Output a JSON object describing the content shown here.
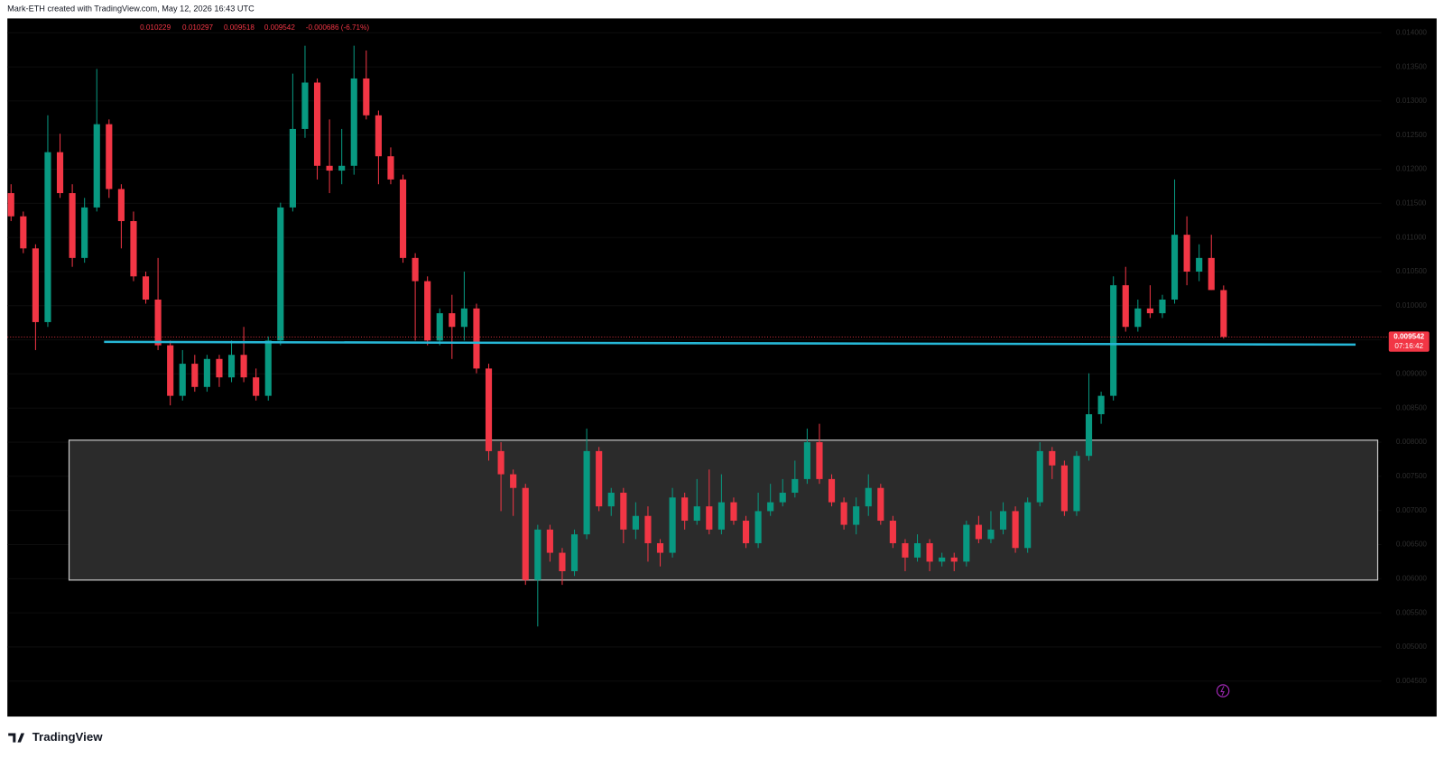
{
  "header": "Mark-ETH created with TradingView.com, May 12, 2026 16:43 UTC",
  "footer_logo": "TradingView",
  "chart_data": {
    "type": "candlestick",
    "up_color": "#089981",
    "down_color": "#f23645",
    "change_label": "-0.000686 (-6.71%)",
    "countdown": "07:16:42",
    "ylim": [
      0.00398,
      0.01421
    ],
    "yticks": [
      {
        "value": 0.0045,
        "label": "0.004500"
      },
      {
        "value": 0.005,
        "label": "0.005000"
      },
      {
        "value": 0.0055,
        "label": "0.005500"
      },
      {
        "value": 0.006,
        "label": "0.006000"
      },
      {
        "value": 0.0065,
        "label": "0.006500"
      },
      {
        "value": 0.007,
        "label": "0.007000"
      },
      {
        "value": 0.0075,
        "label": "0.007500"
      },
      {
        "value": 0.008,
        "label": "0.008000"
      },
      {
        "value": 0.0085,
        "label": "0.008500"
      },
      {
        "value": 0.009,
        "label": "0.009000"
      },
      {
        "value": 0.0095,
        "label": "0.009500"
      },
      {
        "value": 0.01,
        "label": "0.010000"
      },
      {
        "value": 0.0105,
        "label": "0.010500"
      },
      {
        "value": 0.011,
        "label": "0.011000"
      },
      {
        "value": 0.0115,
        "label": "0.011500"
      },
      {
        "value": 0.012,
        "label": "0.012000"
      },
      {
        "value": 0.0125,
        "label": "0.012500"
      },
      {
        "value": 0.013,
        "label": "0.013000"
      },
      {
        "value": 0.0135,
        "label": "0.013500"
      },
      {
        "value": 0.014,
        "label": "0.014000"
      }
    ],
    "support_line": {
      "color": "#26b7d6",
      "values": [
        0.00947,
        0.00943
      ]
    },
    "zone": {
      "top": 0.00803,
      "bottom": 0.00598
    },
    "open": [
      0.01165,
      0.01131,
      0.01084,
      0.00976,
      0.01225,
      0.01165,
      0.0107,
      0.01144,
      0.01266,
      0.01171,
      0.01124,
      0.01043,
      0.01009,
      0.00942,
      0.00868,
      0.00915,
      0.00881,
      0.00922,
      0.00895,
      0.00928,
      0.00895,
      0.00868,
      0.00949,
      0.01144,
      0.01259,
      0.01327,
      0.01205,
      0.01198,
      0.01205,
      0.01333,
      0.01279,
      0.01219,
      0.01185,
      0.0107,
      0.01036,
      0.00949,
      0.00989,
      0.00969,
      0.00996,
      0.00908,
      0.00787,
      0.00753,
      0.00733,
      0.00598,
      0.00672,
      0.00638,
      0.00611,
      0.00665,
      0.00787,
      0.00706,
      0.00726,
      0.00672,
      0.00692,
      0.00652,
      0.00638,
      0.00719,
      0.00685,
      0.00706,
      0.00672,
      0.00712,
      0.00685,
      0.00652,
      0.00699,
      0.00712,
      0.00726,
      0.00746,
      0.008,
      0.00746,
      0.00712,
      0.00679,
      0.00706,
      0.00733,
      0.00685,
      0.00652,
      0.00631,
      0.00652,
      0.00625,
      0.00631,
      0.00625,
      0.00679,
      0.00658,
      0.00672,
      0.00699,
      0.00645,
      0.00712,
      0.00787,
      0.00766,
      0.00699,
      0.0078,
      0.00841,
      0.00868,
      0.0103,
      0.00969,
      0.00996,
      0.00989,
      0.01009,
      0.01104,
      0.0105,
      0.0107,
      0.010229
    ],
    "high": [
      0.01178,
      0.01138,
      0.0109,
      0.01279,
      0.01252,
      0.01178,
      0.01158,
      0.01347,
      0.01273,
      0.01178,
      0.01138,
      0.0105,
      0.0107,
      0.00949,
      0.00935,
      0.00928,
      0.00928,
      0.00928,
      0.00949,
      0.00969,
      0.00908,
      0.00955,
      0.01151,
      0.0134,
      0.01381,
      0.01333,
      0.01273,
      0.01259,
      0.01381,
      0.01374,
      0.01286,
      0.01232,
      0.01192,
      0.01077,
      0.01043,
      0.00996,
      0.01016,
      0.0105,
      0.01003,
      0.00915,
      0.008,
      0.0076,
      0.00739,
      0.00679,
      0.00679,
      0.00645,
      0.00672,
      0.0082,
      0.00793,
      0.00733,
      0.00733,
      0.00712,
      0.00706,
      0.00658,
      0.00733,
      0.00726,
      0.00746,
      0.0076,
      0.00753,
      0.00719,
      0.00692,
      0.00726,
      0.00739,
      0.00746,
      0.00773,
      0.0082,
      0.00827,
      0.00753,
      0.00719,
      0.00719,
      0.00753,
      0.00739,
      0.00692,
      0.00658,
      0.00665,
      0.00658,
      0.00638,
      0.00638,
      0.00685,
      0.00692,
      0.00699,
      0.00712,
      0.00706,
      0.00719,
      0.008,
      0.00793,
      0.00773,
      0.00787,
      0.00901,
      0.00874,
      0.01043,
      0.01057,
      0.01009,
      0.0103,
      0.01016,
      0.01185,
      0.01131,
      0.0109,
      0.01104,
      0.010297
    ],
    "low": [
      0.01124,
      0.01077,
      0.00935,
      0.00969,
      0.01158,
      0.01057,
      0.01063,
      0.01138,
      0.01158,
      0.01084,
      0.01036,
      0.01003,
      0.00935,
      0.00854,
      0.00861,
      0.00874,
      0.00874,
      0.00881,
      0.00888,
      0.00888,
      0.00861,
      0.00861,
      0.00942,
      0.01138,
      0.01246,
      0.01185,
      0.01165,
      0.01178,
      0.01192,
      0.01273,
      0.01178,
      0.01178,
      0.01063,
      0.00949,
      0.00942,
      0.00942,
      0.00922,
      0.00949,
      0.00901,
      0.00773,
      0.00699,
      0.00692,
      0.00591,
      0.0053,
      0.00625,
      0.00591,
      0.00604,
      0.00658,
      0.00699,
      0.00692,
      0.00652,
      0.00658,
      0.00625,
      0.00618,
      0.00631,
      0.00672,
      0.00679,
      0.00665,
      0.00665,
      0.00679,
      0.00645,
      0.00645,
      0.00692,
      0.00706,
      0.00719,
      0.00739,
      0.00739,
      0.00706,
      0.00672,
      0.00665,
      0.00692,
      0.00679,
      0.00645,
      0.00611,
      0.00625,
      0.00611,
      0.00618,
      0.00611,
      0.00618,
      0.00652,
      0.00652,
      0.00665,
      0.00638,
      0.00638,
      0.00706,
      0.00746,
      0.00692,
      0.00692,
      0.00773,
      0.00827,
      0.00861,
      0.00962,
      0.00962,
      0.00982,
      0.00982,
      0.01003,
      0.0103,
      0.01036,
      0.01023,
      0.009518
    ],
    "close": [
      0.01131,
      0.01084,
      0.00976,
      0.01225,
      0.01165,
      0.0107,
      0.01144,
      0.01266,
      0.01171,
      0.01124,
      0.01043,
      0.01009,
      0.00942,
      0.00868,
      0.00915,
      0.00881,
      0.00922,
      0.00895,
      0.00928,
      0.00895,
      0.00868,
      0.00949,
      0.01144,
      0.01259,
      0.01327,
      0.01205,
      0.01198,
      0.01205,
      0.01333,
      0.01279,
      0.01219,
      0.01185,
      0.0107,
      0.01036,
      0.00949,
      0.00989,
      0.00969,
      0.00996,
      0.00908,
      0.00787,
      0.00753,
      0.00733,
      0.00598,
      0.00672,
      0.00638,
      0.00611,
      0.00665,
      0.00787,
      0.00706,
      0.00726,
      0.00672,
      0.00692,
      0.00652,
      0.00638,
      0.00719,
      0.00685,
      0.00706,
      0.00672,
      0.00712,
      0.00685,
      0.00652,
      0.00699,
      0.00712,
      0.00726,
      0.00746,
      0.008,
      0.00746,
      0.00712,
      0.00679,
      0.00706,
      0.00733,
      0.00685,
      0.00652,
      0.00631,
      0.00652,
      0.00625,
      0.00631,
      0.00625,
      0.00679,
      0.00658,
      0.00672,
      0.00699,
      0.00645,
      0.00712,
      0.00787,
      0.00766,
      0.00699,
      0.0078,
      0.00841,
      0.00868,
      0.0103,
      0.00969,
      0.00996,
      0.00989,
      0.01009,
      0.01104,
      0.0105,
      0.0107,
      0.01023,
      0.009542
    ]
  }
}
